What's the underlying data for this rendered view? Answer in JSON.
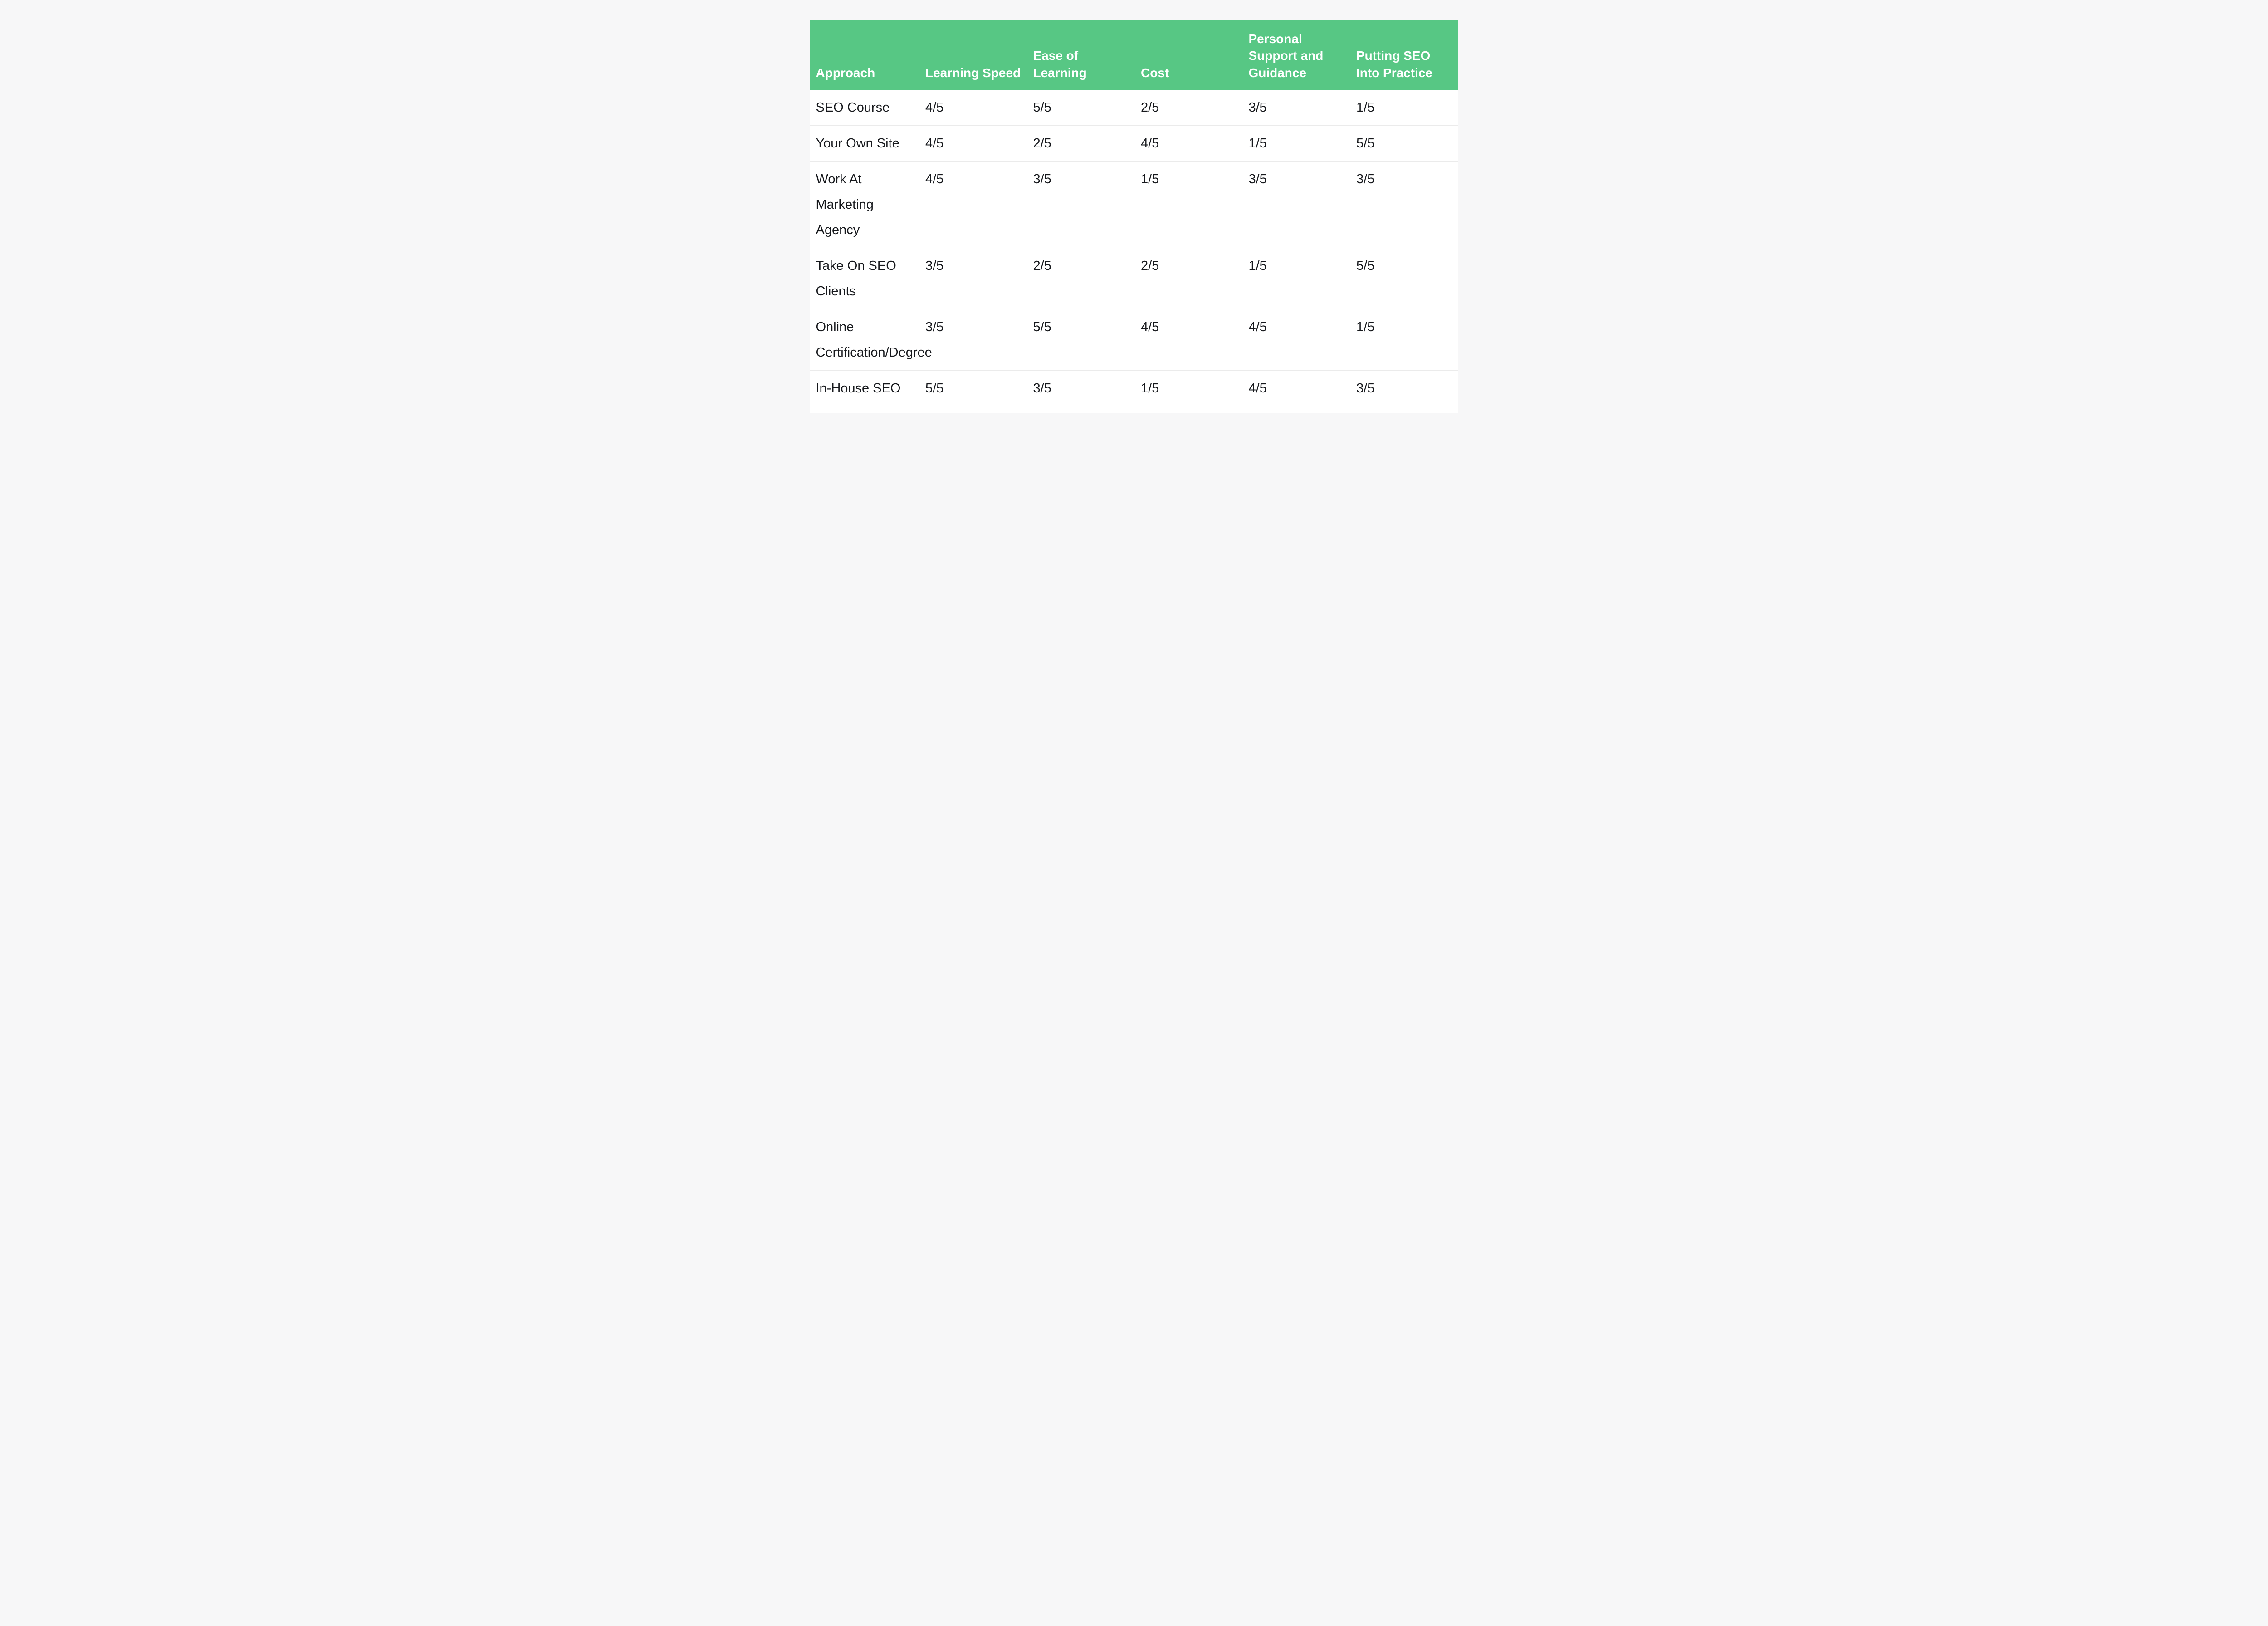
{
  "page": {
    "background_color": "#f7f7f8",
    "card_color": "#ffffff"
  },
  "table": {
    "header_bg_color": "#57c784",
    "header_text_color": "#ffffff",
    "divider_color": "#ebebeb"
  },
  "chart_data": {
    "type": "table",
    "columns": [
      "Approach",
      "Learning Speed",
      "Ease of Learning",
      "Cost",
      "Personal Support and Guidance",
      "Putting SEO Into Practice"
    ],
    "rows": [
      [
        "SEO Course",
        "4/5",
        "5/5",
        "2/5",
        "3/5",
        "1/5"
      ],
      [
        "Your Own Site",
        "4/5",
        "2/5",
        "4/5",
        "1/5",
        "5/5"
      ],
      [
        "Work At Marketing Agency",
        "4/5",
        "3/5",
        "1/5",
        "3/5",
        "3/5"
      ],
      [
        "Take On SEO Clients",
        "3/5",
        "2/5",
        "2/5",
        "1/5",
        "5/5"
      ],
      [
        "Online Certification/Degree",
        "3/5",
        "5/5",
        "4/5",
        "4/5",
        "1/5"
      ],
      [
        "In-House SEO",
        "5/5",
        "3/5",
        "1/5",
        "4/5",
        "3/5"
      ]
    ]
  }
}
